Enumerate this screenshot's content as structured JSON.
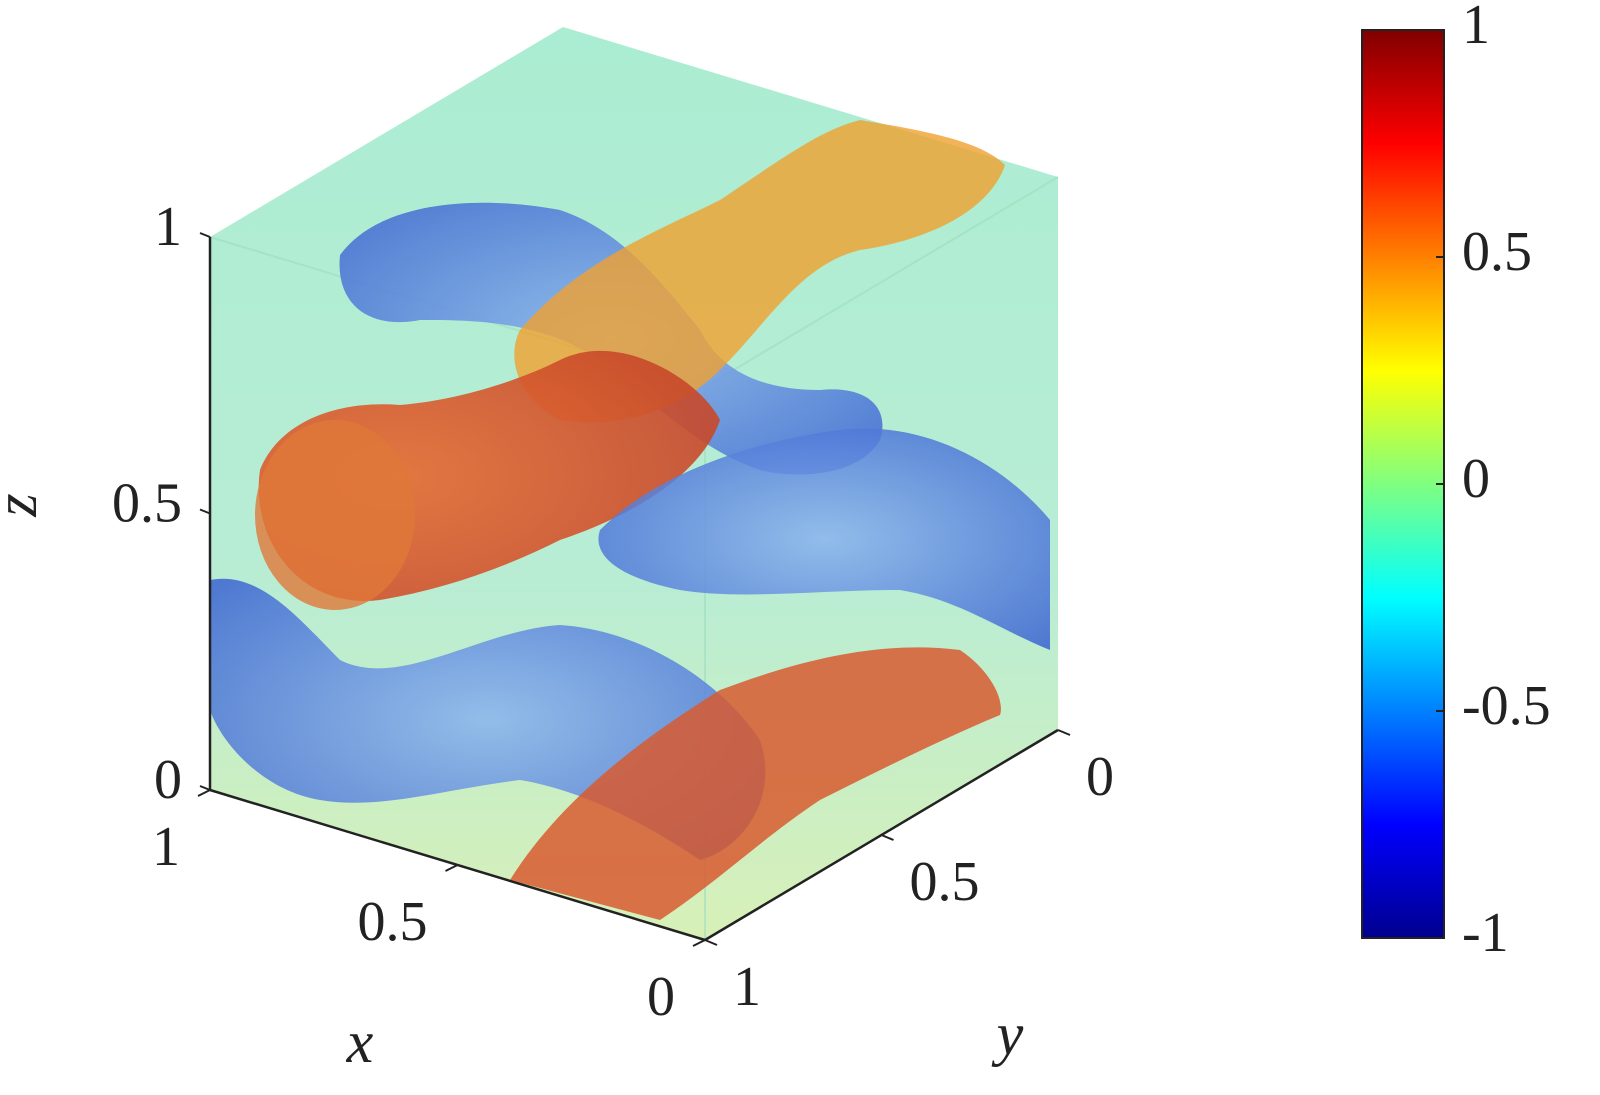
{
  "chart_data": {
    "type": "isosurface3d",
    "xlabel": "x",
    "ylabel": "y",
    "zlabel": "z",
    "xlim": [
      0,
      1
    ],
    "xticks": [
      0,
      0.5,
      1
    ],
    "ylim": [
      0,
      1
    ],
    "yticks": [
      0,
      0.5,
      1
    ],
    "zlim": [
      0,
      1
    ],
    "zticks": [
      0,
      0.5,
      1
    ],
    "colorbar": {
      "colormap": "jet",
      "lim": [
        -1,
        1
      ],
      "ticks": [
        -1,
        -0.5,
        0,
        0.5,
        1
      ]
    }
  }
}
